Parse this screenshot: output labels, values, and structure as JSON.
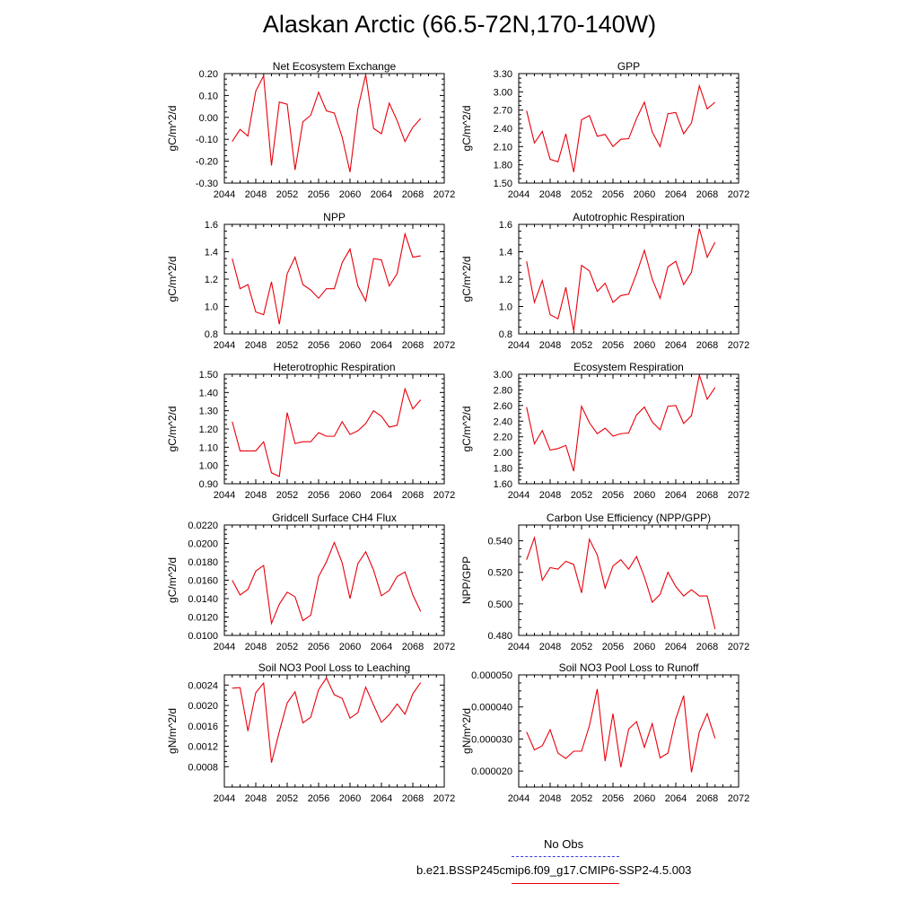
{
  "title": "Alaskan Arctic (66.5-72N,170-140W)",
  "x_ticks": [
    "2044",
    "2048",
    "2052",
    "2056",
    "2060",
    "2064",
    "2068",
    "2072"
  ],
  "legend": {
    "obs_label": "No Obs",
    "obs_color": "#3b3bd6",
    "model_label": "b.e21.BSSP245cmip6.f09_g17.CMIP6-SSP2-4.5.003",
    "model_color": "#e8000b"
  },
  "chart_data": [
    {
      "type": "line",
      "title": "Net Ecosystem Exchange",
      "ylabel": "gC/m^2/d",
      "xlim": [
        2044,
        2072
      ],
      "ylim": [
        -0.3,
        0.2
      ],
      "yticks": [
        "-0.30",
        "-0.20",
        "-0.10",
        "0.00",
        "0.10",
        "0.20"
      ],
      "series": [
        {
          "color": "#e8000b",
          "x": [
            2045,
            2046,
            2047,
            2048,
            2049,
            2050,
            2051,
            2052,
            2053,
            2054,
            2055,
            2056,
            2057,
            2058,
            2059,
            2060,
            2061,
            2062,
            2063,
            2064,
            2065,
            2066,
            2067,
            2068,
            2069
          ],
          "values": [
            -0.11,
            -0.055,
            -0.085,
            0.12,
            0.19,
            -0.22,
            0.07,
            0.06,
            -0.24,
            -0.02,
            0.01,
            0.115,
            0.03,
            0.02,
            -0.09,
            -0.25,
            0.04,
            0.195,
            -0.05,
            -0.075,
            0.065,
            -0.015,
            -0.11,
            -0.045,
            -0.005
          ]
        }
      ]
    },
    {
      "type": "line",
      "title": "GPP",
      "ylabel": "gC/m^2/d",
      "xlim": [
        2044,
        2072
      ],
      "ylim": [
        1.5,
        3.3
      ],
      "yticks": [
        "1.50",
        "1.80",
        "2.10",
        "2.40",
        "2.70",
        "3.00",
        "3.30"
      ],
      "series": [
        {
          "color": "#e8000b",
          "x": [
            2045,
            2046,
            2047,
            2048,
            2049,
            2050,
            2051,
            2052,
            2053,
            2054,
            2055,
            2056,
            2057,
            2058,
            2059,
            2060,
            2061,
            2062,
            2063,
            2064,
            2065,
            2066,
            2067,
            2068,
            2069
          ],
          "values": [
            2.69,
            2.16,
            2.35,
            1.89,
            1.85,
            2.31,
            1.68,
            2.54,
            2.61,
            2.27,
            2.3,
            2.1,
            2.22,
            2.23,
            2.56,
            2.83,
            2.34,
            2.1,
            2.64,
            2.66,
            2.31,
            2.49,
            3.1,
            2.72,
            2.83
          ]
        }
      ]
    },
    {
      "type": "line",
      "title": "NPP",
      "ylabel": "gC/m^2/d",
      "xlim": [
        2044,
        2072
      ],
      "ylim": [
        0.8,
        1.6
      ],
      "yticks": [
        "0.8",
        "1.0",
        "1.2",
        "1.4",
        "1.6"
      ],
      "series": [
        {
          "color": "#e8000b",
          "x": [
            2045,
            2046,
            2047,
            2048,
            2049,
            2050,
            2051,
            2052,
            2053,
            2054,
            2055,
            2056,
            2057,
            2058,
            2059,
            2060,
            2061,
            2062,
            2063,
            2064,
            2065,
            2066,
            2067,
            2068,
            2069
          ],
          "values": [
            1.35,
            1.13,
            1.16,
            0.96,
            0.94,
            1.18,
            0.87,
            1.24,
            1.36,
            1.16,
            1.12,
            1.06,
            1.13,
            1.13,
            1.32,
            1.42,
            1.15,
            1.04,
            1.35,
            1.34,
            1.15,
            1.24,
            1.53,
            1.36,
            1.37
          ]
        }
      ]
    },
    {
      "type": "line",
      "title": "Autotrophic Respiration",
      "ylabel": "gC/m^2/d",
      "xlim": [
        2044,
        2072
      ],
      "ylim": [
        0.8,
        1.6
      ],
      "yticks": [
        "0.8",
        "1.0",
        "1.2",
        "1.4",
        "1.6"
      ],
      "series": [
        {
          "color": "#e8000b",
          "x": [
            2045,
            2046,
            2047,
            2048,
            2049,
            2050,
            2051,
            2052,
            2053,
            2054,
            2055,
            2056,
            2057,
            2058,
            2059,
            2060,
            2061,
            2062,
            2063,
            2064,
            2065,
            2066,
            2067,
            2068,
            2069
          ],
          "values": [
            1.33,
            1.03,
            1.19,
            0.94,
            0.91,
            1.14,
            0.82,
            1.3,
            1.26,
            1.11,
            1.17,
            1.03,
            1.08,
            1.09,
            1.24,
            1.41,
            1.2,
            1.06,
            1.29,
            1.33,
            1.16,
            1.25,
            1.57,
            1.36,
            1.47
          ]
        }
      ]
    },
    {
      "type": "line",
      "title": "Heterotrophic Respiration",
      "ylabel": "gC/m^2/d",
      "xlim": [
        2044,
        2072
      ],
      "ylim": [
        0.9,
        1.5
      ],
      "yticks": [
        "0.90",
        "1.00",
        "1.10",
        "1.20",
        "1.30",
        "1.40",
        "1.50"
      ],
      "series": [
        {
          "color": "#e8000b",
          "x": [
            2045,
            2046,
            2047,
            2048,
            2049,
            2050,
            2051,
            2052,
            2053,
            2054,
            2055,
            2056,
            2057,
            2058,
            2059,
            2060,
            2061,
            2062,
            2063,
            2064,
            2065,
            2066,
            2067,
            2068,
            2069
          ],
          "values": [
            1.24,
            1.08,
            1.08,
            1.08,
            1.13,
            0.96,
            0.94,
            1.29,
            1.12,
            1.13,
            1.13,
            1.18,
            1.16,
            1.16,
            1.24,
            1.17,
            1.19,
            1.23,
            1.3,
            1.27,
            1.21,
            1.22,
            1.42,
            1.31,
            1.36
          ]
        }
      ]
    },
    {
      "type": "line",
      "title": "Ecosystem Respiration",
      "ylabel": "gC/m^2/d",
      "xlim": [
        2044,
        2072
      ],
      "ylim": [
        1.6,
        3.0
      ],
      "yticks": [
        "1.60",
        "1.80",
        "2.00",
        "2.20",
        "2.40",
        "2.60",
        "2.80",
        "3.00"
      ],
      "series": [
        {
          "color": "#e8000b",
          "x": [
            2045,
            2046,
            2047,
            2048,
            2049,
            2050,
            2051,
            2052,
            2053,
            2054,
            2055,
            2056,
            2057,
            2058,
            2059,
            2060,
            2061,
            2062,
            2063,
            2064,
            2065,
            2066,
            2067,
            2068,
            2069
          ],
          "values": [
            2.58,
            2.11,
            2.28,
            2.03,
            2.05,
            2.09,
            1.76,
            2.59,
            2.38,
            2.24,
            2.31,
            2.21,
            2.24,
            2.25,
            2.48,
            2.58,
            2.39,
            2.29,
            2.59,
            2.6,
            2.37,
            2.47,
            2.99,
            2.68,
            2.83
          ]
        }
      ]
    },
    {
      "type": "line",
      "title": "Gridcell Surface CH4 Flux",
      "ylabel": "gC/m^2/d",
      "xlim": [
        2044,
        2072
      ],
      "ylim": [
        0.01,
        0.022
      ],
      "yticks": [
        "0.0100",
        "0.0120",
        "0.0140",
        "0.0160",
        "0.0180",
        "0.0200",
        "0.0220"
      ],
      "series": [
        {
          "color": "#e8000b",
          "x": [
            2045,
            2046,
            2047,
            2048,
            2049,
            2050,
            2051,
            2052,
            2053,
            2054,
            2055,
            2056,
            2057,
            2058,
            2059,
            2060,
            2061,
            2062,
            2063,
            2064,
            2065,
            2066,
            2067,
            2068,
            2069
          ],
          "values": [
            0.016,
            0.0144,
            0.015,
            0.017,
            0.0176,
            0.0113,
            0.0134,
            0.0147,
            0.0142,
            0.0116,
            0.0122,
            0.0164,
            0.018,
            0.0201,
            0.0179,
            0.014,
            0.0178,
            0.0191,
            0.0171,
            0.0143,
            0.0149,
            0.0164,
            0.0169,
            0.0144,
            0.0126
          ]
        }
      ]
    },
    {
      "type": "line",
      "title": "Carbon Use Efficiency (NPP/GPP)",
      "ylabel": "NPP/GPP",
      "xlim": [
        2044,
        2072
      ],
      "ylim": [
        0.48,
        0.55
      ],
      "yticks": [
        "0.480",
        "0.500",
        "0.520",
        "0.540"
      ],
      "series": [
        {
          "color": "#e8000b",
          "x": [
            2045,
            2046,
            2047,
            2048,
            2049,
            2050,
            2051,
            2052,
            2053,
            2054,
            2055,
            2056,
            2057,
            2058,
            2059,
            2060,
            2061,
            2062,
            2063,
            2064,
            2065,
            2066,
            2067,
            2068,
            2069
          ],
          "values": [
            0.528,
            0.542,
            0.515,
            0.523,
            0.522,
            0.527,
            0.525,
            0.507,
            0.541,
            0.531,
            0.51,
            0.524,
            0.528,
            0.522,
            0.53,
            0.517,
            0.501,
            0.506,
            0.52,
            0.511,
            0.505,
            0.509,
            0.505,
            0.505,
            0.484
          ]
        }
      ]
    },
    {
      "type": "line",
      "title": "Soil NO3 Pool Loss to Leaching",
      "ylabel": "gN/m^2/d",
      "xlim": [
        2044,
        2072
      ],
      "ylim": [
        0.0004,
        0.0026
      ],
      "yticks": [
        "0.0008",
        "0.0012",
        "0.0016",
        "0.0020",
        "0.0024"
      ],
      "series": [
        {
          "color": "#e8000b",
          "x": [
            2045,
            2046,
            2047,
            2048,
            2049,
            2050,
            2051,
            2052,
            2053,
            2054,
            2055,
            2056,
            2057,
            2058,
            2059,
            2060,
            2061,
            2062,
            2063,
            2064,
            2065,
            2066,
            2067,
            2068,
            2069
          ],
          "values": [
            0.00234,
            0.00235,
            0.0015,
            0.00225,
            0.00244,
            0.00088,
            0.00149,
            0.00205,
            0.00227,
            0.00166,
            0.00177,
            0.00231,
            0.00254,
            0.00221,
            0.00214,
            0.00175,
            0.00186,
            0.00236,
            0.00201,
            0.00167,
            0.00182,
            0.00203,
            0.00183,
            0.00223,
            0.00245
          ]
        }
      ]
    },
    {
      "type": "line",
      "title": "Soil NO3 Pool Loss to Runoff",
      "ylabel": "gN/m^2/d",
      "xlim": [
        2044,
        2072
      ],
      "ylim": [
        1.5e-05,
        5e-05
      ],
      "yticks": [
        "0.000020",
        "0.000030",
        "0.000040",
        "0.000050"
      ],
      "series": [
        {
          "color": "#e8000b",
          "x": [
            2045,
            2046,
            2047,
            2048,
            2049,
            2050,
            2051,
            2052,
            2053,
            2054,
            2055,
            2056,
            2057,
            2058,
            2059,
            2060,
            2061,
            2062,
            2063,
            2064,
            2065,
            2066,
            2067,
            2068,
            2069
          ],
          "values": [
            3.22e-05,
            2.66e-05,
            2.79e-05,
            3.29e-05,
            2.56e-05,
            2.39e-05,
            2.62e-05,
            2.62e-05,
            3.41e-05,
            4.56e-05,
            2.31e-05,
            3.79e-05,
            2.12e-05,
            3.31e-05,
            3.54e-05,
            2.74e-05,
            3.48e-05,
            2.41e-05,
            2.56e-05,
            3.63e-05,
            4.35e-05,
            1.96e-05,
            3.22e-05,
            3.79e-05,
            3.02e-05
          ]
        }
      ]
    }
  ]
}
